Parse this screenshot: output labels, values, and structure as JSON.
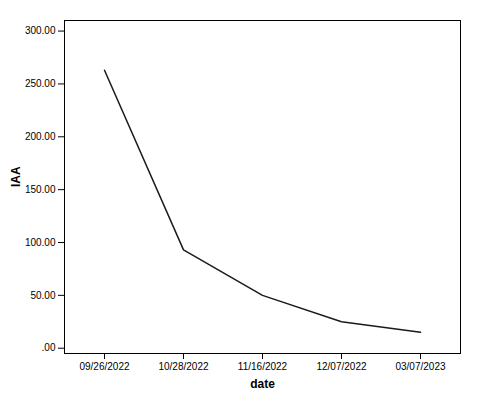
{
  "chart_data": {
    "type": "line",
    "xlabel": "date",
    "ylabel": "IAA",
    "categories": [
      "09/26/2022",
      "10/28/2022",
      "11/16/2022",
      "12/07/2022",
      "03/07/2023"
    ],
    "values": [
      263.0,
      93.0,
      50.0,
      25.0,
      15.0
    ],
    "color": "#1a1a1a",
    "ylim": [
      -5.0,
      310.0
    ],
    "yticks": [
      {
        "value": 0,
        "label": ".00"
      },
      {
        "value": 50,
        "label": "50.00"
      },
      {
        "value": 100,
        "label": "100.00"
      },
      {
        "value": 150,
        "label": "150.00"
      },
      {
        "value": 200,
        "label": "200.00"
      },
      {
        "value": 250,
        "label": "250.00"
      },
      {
        "value": 300,
        "label": "300.00"
      }
    ],
    "grid": false
  }
}
